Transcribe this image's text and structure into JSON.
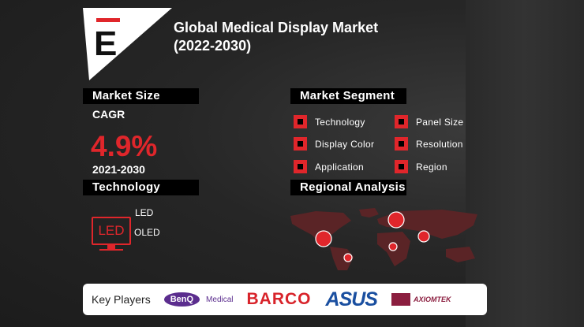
{
  "header": {
    "title_line1": "Global Medical Display Market",
    "title_line2": "(2022-2030)",
    "logo_letter": "E"
  },
  "market_size": {
    "heading": "Market Size",
    "cagr_label": "CAGR",
    "cagr_value": "4.9%",
    "period": "2021-2030"
  },
  "technology": {
    "heading": "Technology",
    "icon_label": "LED",
    "items": [
      "LED",
      "OLED"
    ]
  },
  "market_segment": {
    "heading": "Market Segment",
    "items": [
      "Technology",
      "Panel Size",
      "Display Color",
      "Resolution",
      "Application",
      "Region"
    ]
  },
  "regional": {
    "heading": "Regional Analysis"
  },
  "key_players": {
    "label": "Key Players",
    "logos": [
      "BenQ",
      "Medical",
      "BARCO",
      "ASUS",
      "AXIOMTEK"
    ]
  },
  "colors": {
    "accent": "#e0262b",
    "background": "#232323",
    "map": "#5a2426"
  }
}
